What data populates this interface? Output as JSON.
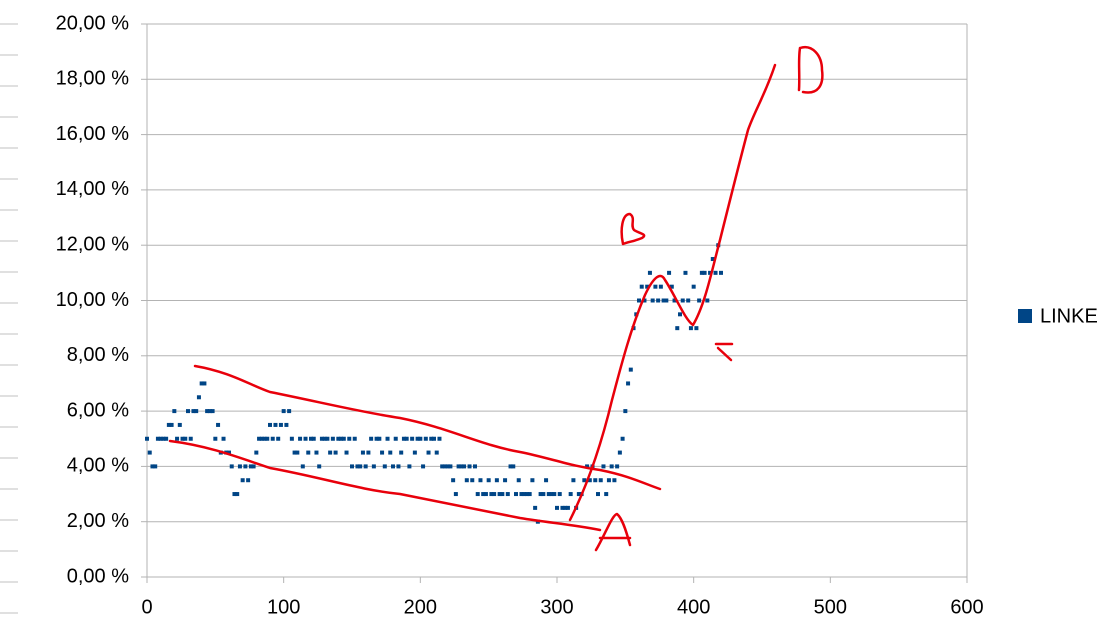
{
  "chart_data": {
    "type": "scatter",
    "series": [
      {
        "name": "LINKE",
        "color": "#004586",
        "x": [
          0,
          2,
          4,
          6,
          8,
          10,
          12,
          14,
          16,
          18,
          20,
          22,
          24,
          26,
          28,
          30,
          32,
          34,
          36,
          38,
          40,
          42,
          44,
          46,
          48,
          50,
          52,
          54,
          56,
          58,
          60,
          62,
          64,
          66,
          68,
          70,
          72,
          74,
          76,
          78,
          80,
          82,
          84,
          86,
          88,
          90,
          92,
          94,
          96,
          98,
          100,
          102,
          104,
          106,
          108,
          110,
          112,
          114,
          116,
          118,
          120,
          122,
          124,
          126,
          128,
          130,
          132,
          134,
          136,
          138,
          140,
          142,
          144,
          146,
          148,
          150,
          152,
          154,
          156,
          158,
          160,
          162,
          164,
          166,
          168,
          170,
          172,
          174,
          176,
          178,
          180,
          182,
          184,
          186,
          188,
          190,
          192,
          194,
          196,
          198,
          200,
          202,
          204,
          206,
          208,
          210,
          212,
          214,
          216,
          218,
          220,
          222,
          224,
          226,
          228,
          230,
          232,
          234,
          236,
          238,
          240,
          242,
          244,
          246,
          248,
          250,
          252,
          254,
          256,
          258,
          260,
          262,
          264,
          266,
          268,
          270,
          272,
          274,
          276,
          278,
          280,
          282,
          284,
          286,
          288,
          290,
          292,
          294,
          296,
          298,
          300,
          302,
          304,
          306,
          308,
          310,
          312,
          314,
          316,
          318,
          320,
          322,
          324,
          326,
          328,
          330,
          332,
          334,
          336,
          338,
          340,
          342,
          344,
          346,
          348,
          350,
          352,
          354,
          356,
          358,
          360,
          362,
          364,
          366,
          368,
          370,
          372,
          374,
          376,
          378,
          380,
          382,
          384,
          386,
          388,
          390,
          392,
          394,
          396,
          398,
          400,
          402,
          404,
          406,
          408,
          410,
          412,
          414,
          416,
          418,
          420
        ],
        "values": [
          5,
          4.5,
          4,
          4,
          5,
          5,
          5,
          5,
          5.5,
          5.5,
          6,
          5,
          5.5,
          5,
          5,
          6,
          5,
          6,
          6,
          6.5,
          7,
          7,
          6,
          6,
          6,
          5,
          5.5,
          4.5,
          5,
          4.5,
          4.5,
          4,
          3,
          3,
          4,
          3.5,
          4,
          3.5,
          4,
          4,
          4.5,
          5,
          5,
          5,
          5,
          5.5,
          5,
          5.5,
          5,
          5.5,
          6,
          5.5,
          6,
          5,
          4.5,
          4.5,
          5,
          4,
          5,
          4.5,
          5,
          5,
          4.5,
          4,
          5,
          5,
          5,
          4.5,
          5,
          4.5,
          5,
          5,
          5,
          4.5,
          5,
          4,
          5,
          4,
          4,
          4.5,
          4,
          4.5,
          5,
          4,
          5,
          5,
          4.5,
          4,
          5,
          4.5,
          4,
          5,
          4,
          4.5,
          5,
          5,
          4,
          5,
          4.5,
          5,
          5,
          4,
          5,
          4.5,
          5,
          5,
          4.5,
          5,
          4,
          4,
          4,
          4,
          3.5,
          3,
          4,
          4,
          4,
          3.5,
          4,
          3.5,
          4,
          3,
          3.5,
          3,
          3,
          3.5,
          3,
          3,
          3.5,
          3,
          3,
          3.5,
          3,
          4,
          4,
          3,
          3.5,
          3,
          3,
          3,
          3,
          3.5,
          2.5,
          2,
          3,
          3,
          3.5,
          3,
          3,
          3,
          2.5,
          3,
          2.5,
          2.5,
          2.5,
          3,
          3.5,
          2.5,
          3,
          3,
          3.5,
          4,
          3.5,
          4,
          3.5,
          3,
          3.5,
          4,
          3,
          3.5,
          4,
          3.5,
          4,
          4.5,
          5,
          6,
          7,
          7.5,
          9,
          9.5,
          10,
          10.5,
          10,
          10.5,
          11,
          10,
          10.5,
          10,
          10.5,
          10,
          10,
          11,
          10.5,
          10,
          9,
          9.5,
          10,
          11,
          10,
          9,
          10.5,
          9,
          10,
          11,
          11,
          10,
          11,
          11.5,
          11,
          12,
          11
        ]
      }
    ],
    "xlim": [
      0,
      600
    ],
    "xticks": [
      0,
      100,
      200,
      300,
      400,
      500,
      600
    ],
    "ylim": [
      0,
      20
    ],
    "yticks": [
      {
        "value": 0,
        "label": "0,00 %"
      },
      {
        "value": 2,
        "label": "2,00 %"
      },
      {
        "value": 4,
        "label": "4,00 %"
      },
      {
        "value": 6,
        "label": "6,00 %"
      },
      {
        "value": 8,
        "label": "8,00 %"
      },
      {
        "value": 10,
        "label": "10,00 %"
      },
      {
        "value": 12,
        "label": "12,00 %"
      },
      {
        "value": 14,
        "label": "14,00 %"
      },
      {
        "value": 16,
        "label": "16,00 %"
      },
      {
        "value": 18,
        "label": "18,00 %"
      },
      {
        "value": 20,
        "label": "20,00 %"
      }
    ],
    "grid": true,
    "legend": "right"
  }
}
